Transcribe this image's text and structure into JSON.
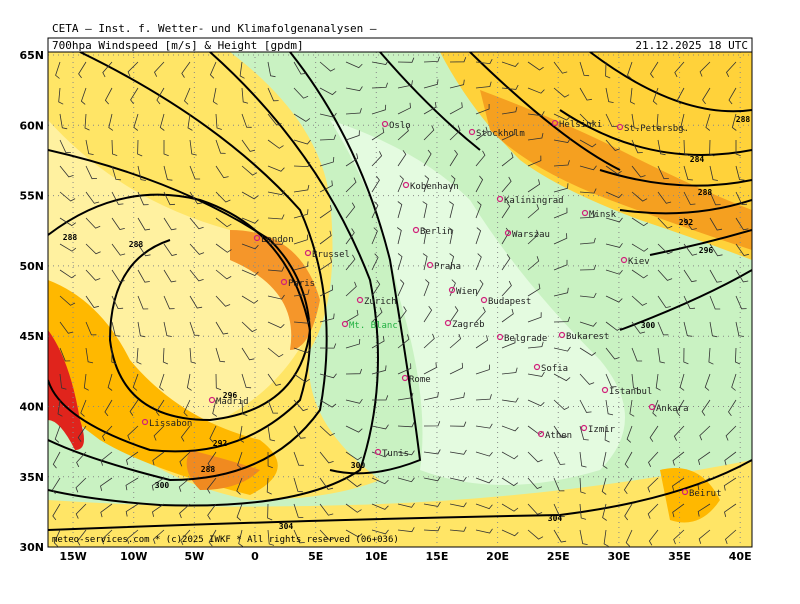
{
  "header": {
    "institute": "CETA — Inst. f. Wetter- und Klimafolgenanalysen —",
    "title": "700hpa Windspeed [m/s] & Height [gpdm]",
    "date": "21.12.2025 18 UTC"
  },
  "map": {
    "lat_ticks": [
      {
        "value": 65,
        "label": "65N"
      },
      {
        "value": 60,
        "label": "60N"
      },
      {
        "value": 55,
        "label": "55N"
      },
      {
        "value": 50,
        "label": "50N"
      },
      {
        "value": 45,
        "label": "45N"
      },
      {
        "value": 40,
        "label": "40N"
      },
      {
        "value": 35,
        "label": "35N"
      },
      {
        "value": 30,
        "label": "30N"
      }
    ],
    "lon_ticks": [
      {
        "value": -15,
        "label": "15W"
      },
      {
        "value": -10,
        "label": "10W"
      },
      {
        "value": -5,
        "label": "5W"
      },
      {
        "value": 0,
        "label": "0"
      },
      {
        "value": 5,
        "label": "5E"
      },
      {
        "value": 10,
        "label": "10E"
      },
      {
        "value": 15,
        "label": "15E"
      },
      {
        "value": 20,
        "label": "20E"
      },
      {
        "value": 25,
        "label": "25E"
      },
      {
        "value": 30,
        "label": "30E"
      },
      {
        "value": 35,
        "label": "35E"
      },
      {
        "value": 40,
        "label": "40E"
      }
    ],
    "cities": [
      "Oslo",
      "Stockholm",
      "Helsinki",
      "St.Petersbg.",
      "Kobenhavn",
      "Kaliningrad",
      "Minsk",
      "London",
      "Berlin",
      "Warszau",
      "Brussel",
      "Praha",
      "Kiev",
      "Paris",
      "Wien",
      "Zurich",
      "Budapest",
      "Mt. Blanc",
      "Zagreb",
      "Belgrade",
      "Bukarest",
      "Rome",
      "Sofia",
      "Istanbul",
      "Madrid",
      "Lissabon",
      "Ankara",
      "Athen",
      "Izmir",
      "Tunis",
      "Beirut"
    ],
    "contour_labels": [
      "288",
      "288",
      "296",
      "292",
      "288",
      "300",
      "304",
      "300",
      "304",
      "300",
      "296",
      "292",
      "288",
      "284",
      "288"
    ]
  },
  "footer": "meteo-services.com * (c)2025 IWKF * All rights reserved (06+036)"
}
